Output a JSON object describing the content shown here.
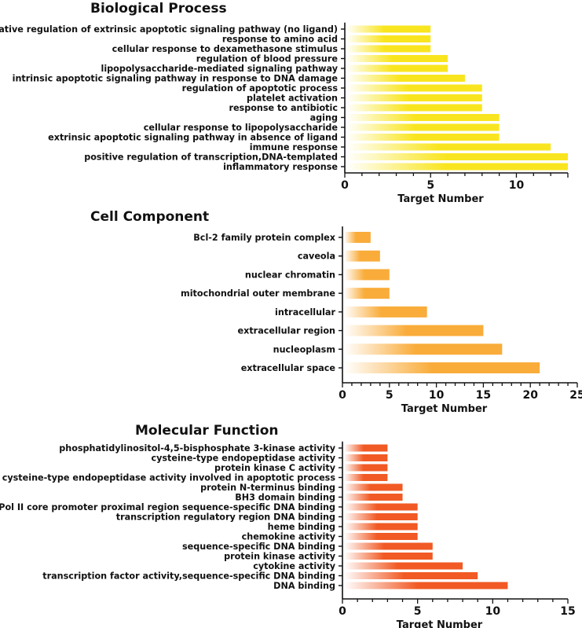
{
  "chart_data": [
    {
      "type": "bar",
      "orientation": "horizontal",
      "title": "Biological Process",
      "xlabel": "Target Number",
      "ylabel": "",
      "xlim": [
        0,
        13
      ],
      "xticks": [
        0,
        5,
        10
      ],
      "color": "#f9e51f",
      "categories": [
        "negative regulation of extrinsic apoptotic signaling pathway (no ligand)",
        "response to amino acid",
        "cellular response to dexamethasone stimulus",
        "regulation of blood pressure",
        "lipopolysaccharide-mediated signaling pathway",
        "intrinsic apoptotic signaling pathway in response to DNA damage",
        "regulation of apoptotic process",
        "platelet activation",
        "response to antibiotic",
        "aging",
        "cellular response to lipopolysaccharide",
        "extrinsic apoptotic signaling pathway in absence of ligand",
        "immune response",
        "positive regulation of transcription,DNA-templated",
        "inflammatory response"
      ],
      "values": [
        5,
        5,
        5,
        6,
        6,
        7,
        8,
        8,
        8,
        9,
        9,
        9,
        12,
        13,
        13
      ]
    },
    {
      "type": "bar",
      "orientation": "horizontal",
      "title": "Cell Component",
      "xlabel": "Target Number",
      "ylabel": "",
      "xlim": [
        0,
        25
      ],
      "xticks": [
        0,
        5,
        10,
        15,
        20,
        25
      ],
      "color": "#f9ac3a",
      "categories": [
        "Bcl-2 family protein complex",
        "caveola",
        "nuclear chromatin",
        "mitochondrial outer membrane",
        "intracellular",
        "extracellular region",
        "nucleoplasm",
        "extracellular space"
      ],
      "values": [
        3,
        4,
        5,
        5,
        9,
        15,
        17,
        21
      ]
    },
    {
      "type": "bar",
      "orientation": "horizontal",
      "title": "Molecular Function",
      "xlabel": "Target Number",
      "ylabel": "",
      "xlim": [
        0,
        15
      ],
      "xticks": [
        0,
        5,
        10,
        15
      ],
      "color": "#f15a24",
      "categories": [
        "phosphatidylinositol-4,5-bisphosphate 3-kinase activity",
        "cysteine-type endopeptidase activity",
        "protein kinase C activity",
        "cysteine-type endopeptidase activity involved in apoptotic process",
        "protein N-terminus binding",
        "BH3 domain binding",
        "Pol II core promoter proximal region sequence-specific DNA binding",
        "transcription regulatory region DNA binding",
        "heme binding",
        "chemokine activity",
        "sequence-specific DNA binding",
        "protein kinase activity",
        "cytokine activity",
        "transcription factor activity,sequence-specific DNA binding",
        "DNA binding"
      ],
      "values": [
        3,
        3,
        3,
        3,
        4,
        4,
        5,
        5,
        5,
        5,
        6,
        6,
        8,
        9,
        11
      ]
    }
  ]
}
